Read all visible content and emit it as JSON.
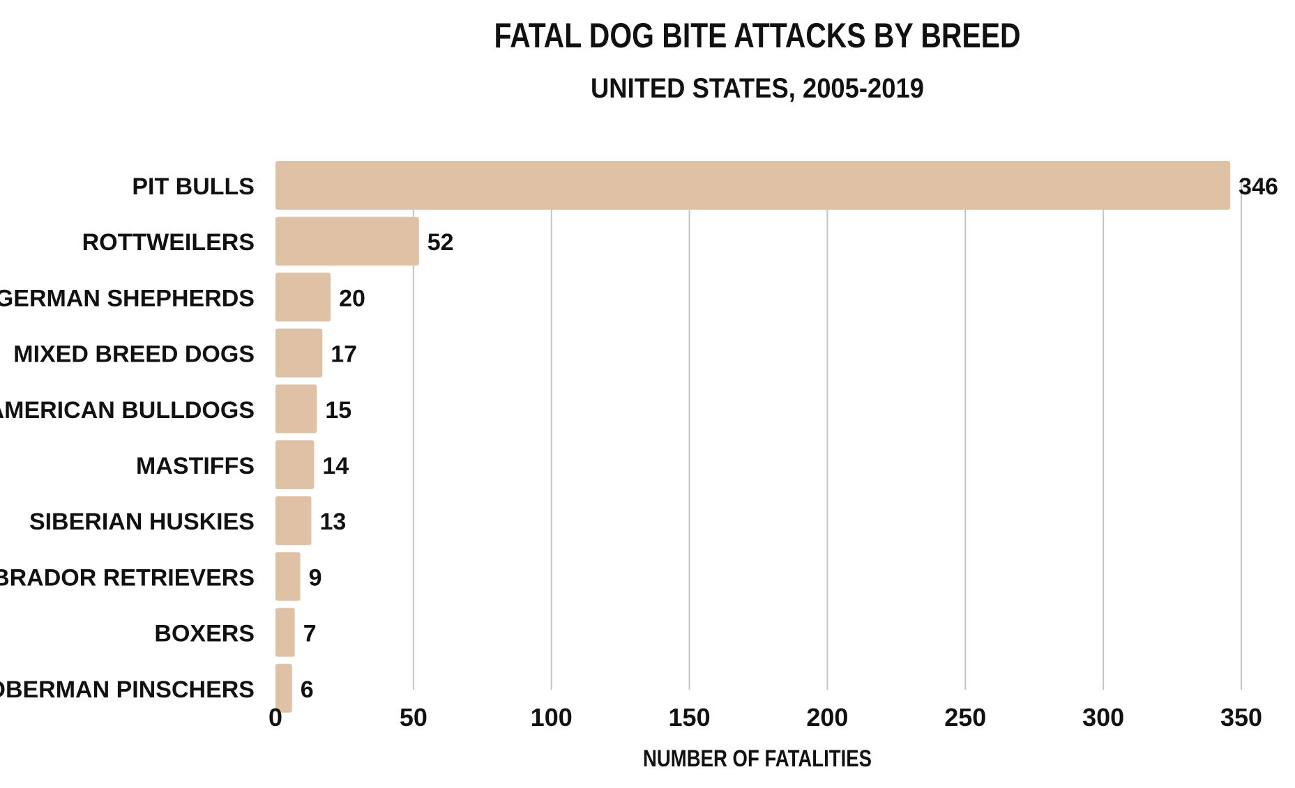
{
  "chart_data": {
    "type": "bar",
    "orientation": "horizontal",
    "title": "FATAL DOG BITE ATTACKS BY BREED",
    "subtitle": "UNITED STATES, 2005-2019",
    "xlabel": "NUMBER OF FATALITIES",
    "ylabel": "",
    "categories": [
      "PIT BULLS",
      "ROTTWEILERS",
      "GERMAN SHEPHERDS",
      "MIXED BREED DOGS",
      "AMERICAN BULLDOGS",
      "MASTIFFS",
      "SIBERIAN HUSKIES",
      "LABRADOR RETRIEVERS",
      "BOXERS",
      "DOBERMAN PINSCHERS"
    ],
    "values": [
      346,
      52,
      20,
      17,
      15,
      14,
      13,
      9,
      7,
      6
    ],
    "value_labels": [
      "346",
      "52",
      "20",
      "17",
      "15",
      "14",
      "13",
      "9",
      "7",
      "6"
    ],
    "xlim": [
      0,
      350
    ],
    "xticks": [
      0,
      50,
      100,
      150,
      200,
      250,
      300,
      350
    ],
    "xtick_labels": [
      "0",
      "50",
      "100",
      "150",
      "200",
      "250",
      "300",
      "350"
    ],
    "grid": "vertical",
    "legend": "none",
    "colors": {
      "bar": "#dfc1a5",
      "grid": "#c4c4c4",
      "text": "#111111"
    }
  }
}
